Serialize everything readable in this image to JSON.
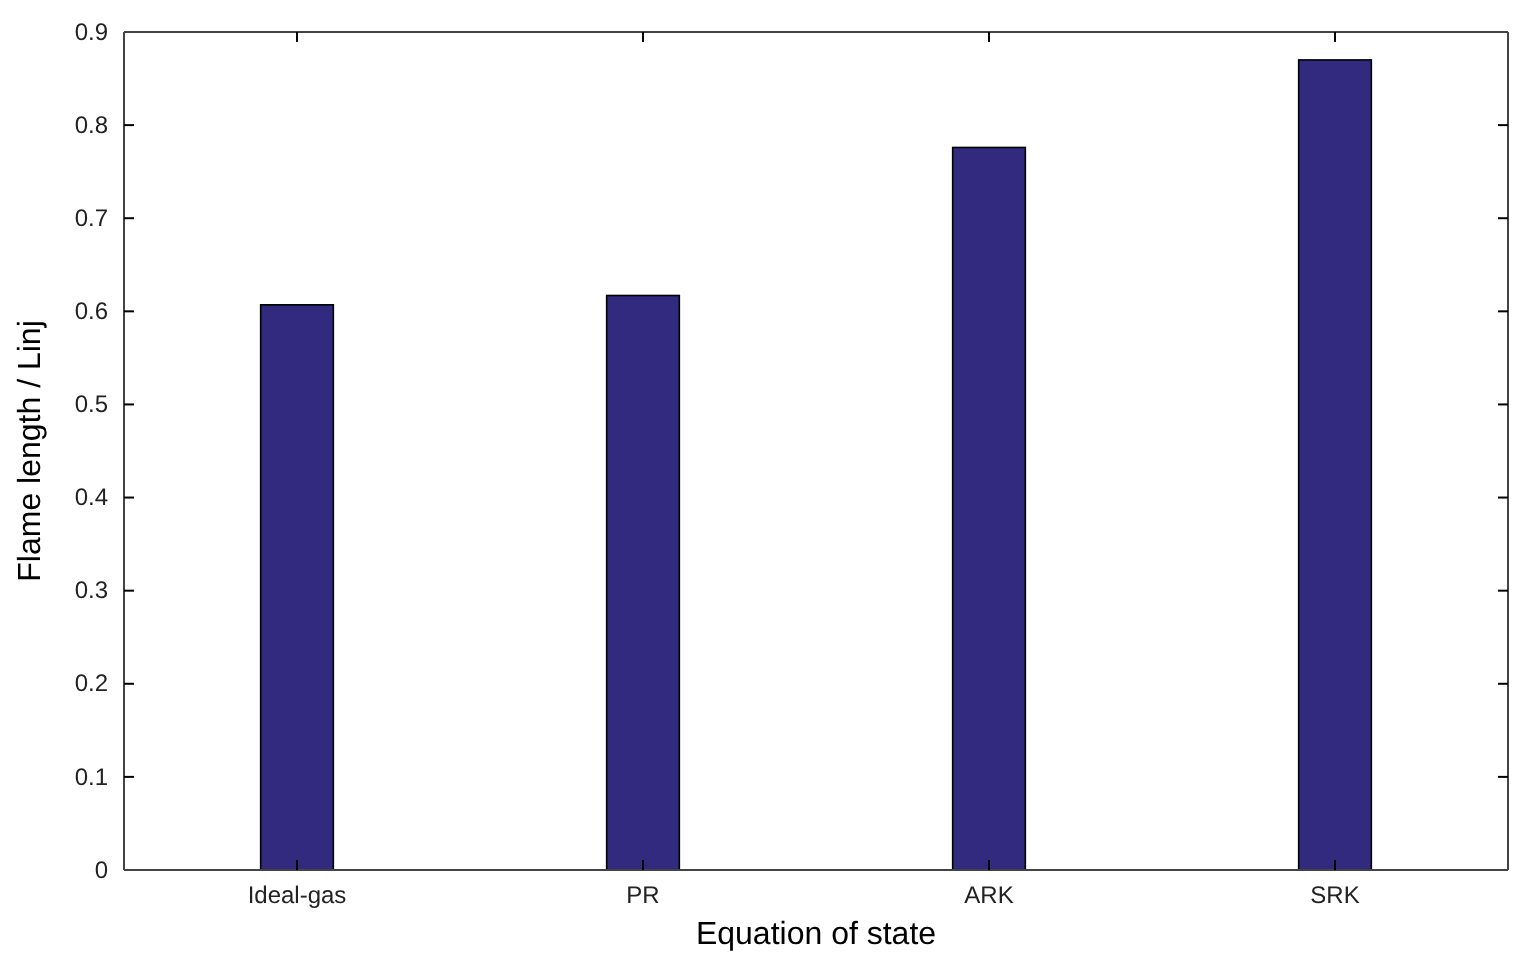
{
  "chart_data": {
    "type": "bar",
    "xlabel": "Equation of state",
    "ylabel": "Flame length / Linj",
    "categories": [
      "Ideal-gas",
      "PR",
      "ARK",
      "SRK"
    ],
    "values": [
      0.607,
      0.617,
      0.776,
      0.87
    ],
    "color": "#312a7f",
    "ylim": [
      0,
      0.9
    ],
    "yticks": [
      0,
      0.1,
      0.2,
      0.3,
      0.4,
      0.5,
      0.6,
      0.7,
      0.8,
      0.9
    ]
  }
}
